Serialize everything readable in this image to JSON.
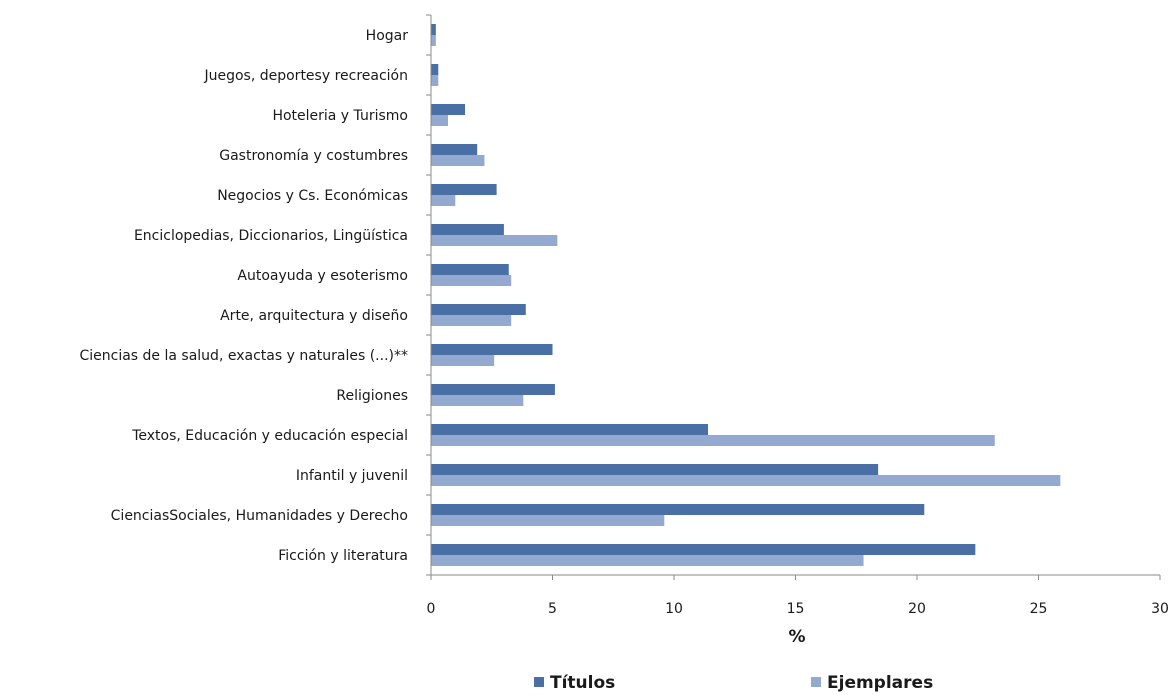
{
  "chart_data": {
    "type": "bar",
    "orientation": "horizontal",
    "categories": [
      "Hogar",
      "Juegos, deportesy recreación",
      "Hoteleria y Turismo",
      "Gastronomía y costumbres",
      "Negocios y Cs. Económicas",
      "Enciclopedias, Diccionarios, Lingüística",
      "Autoayuda y esoterismo",
      "Arte, arquitectura y diseño",
      "Ciencias de la salud, exactas y naturales (...)**",
      "Religiones",
      "Textos, Educación y educación especial",
      "Infantil y juvenil",
      "CienciasSociales, Humanidades y Derecho",
      "Ficción y literatura"
    ],
    "series": [
      {
        "name": "Títulos",
        "color": "#4a6fa5",
        "values": [
          0.2,
          0.3,
          1.4,
          1.9,
          2.7,
          3.0,
          3.2,
          3.9,
          5.0,
          5.1,
          11.4,
          18.4,
          20.3,
          22.4
        ]
      },
      {
        "name": "Ejemplares",
        "color": "#93a9cf",
        "values": [
          0.2,
          0.3,
          0.7,
          2.2,
          1.0,
          5.2,
          3.3,
          3.3,
          2.6,
          3.8,
          23.2,
          25.9,
          9.6,
          17.8
        ]
      }
    ],
    "xlabel": "%",
    "ylabel": "",
    "xlim": [
      0,
      30
    ],
    "xticks": [
      0,
      5,
      10,
      15,
      20,
      25,
      30
    ],
    "grid": false,
    "legend_position": "bottom"
  }
}
